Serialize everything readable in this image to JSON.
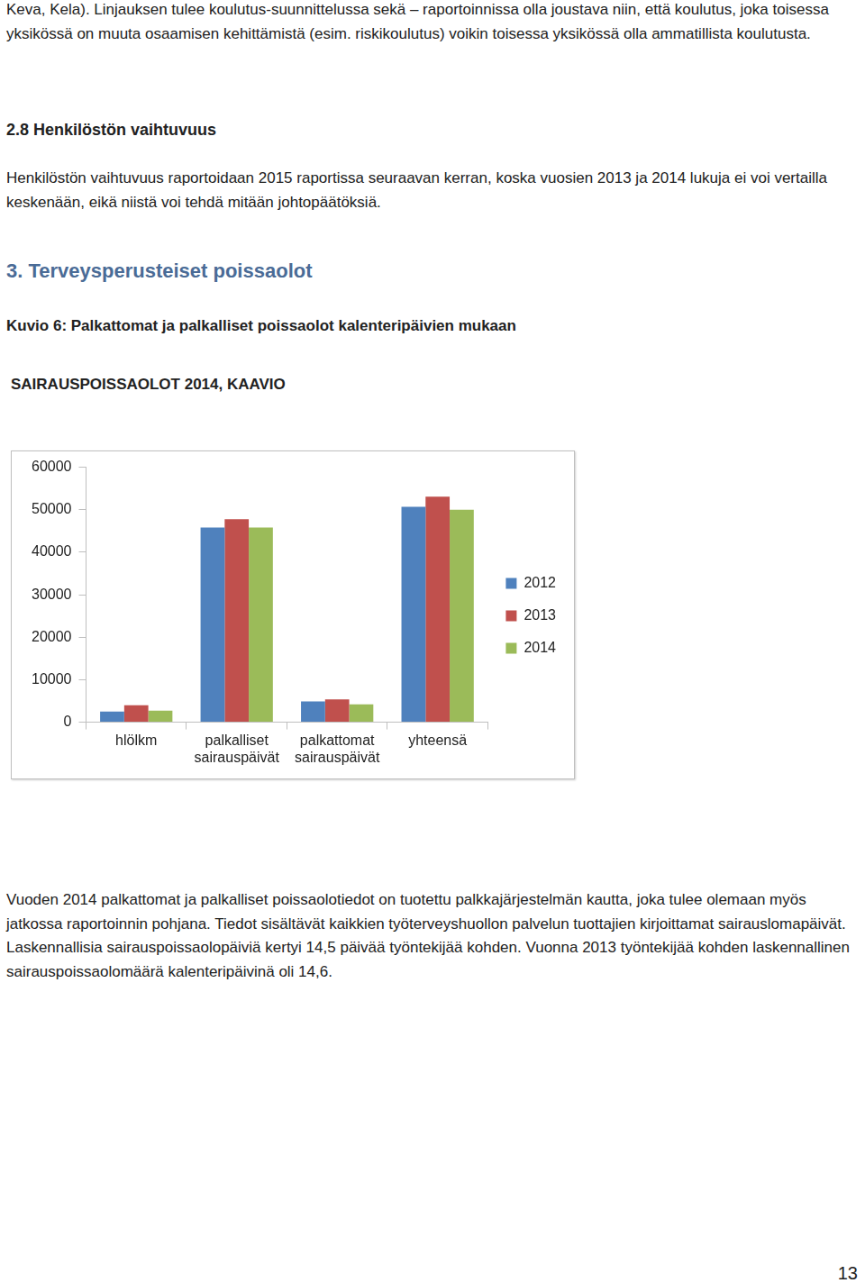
{
  "document": {
    "paragraph_1": "Keva, Kela). Linjauksen tulee koulutus-suunnittelussa sekä – raportoinnissa olla joustava niin, että koulutus, joka toisessa yksikössä on muuta osaamisen kehittämistä (esim. riskikoulutus) voikin toisessa yksikössä olla ammatillista koulutusta.",
    "heading_2_8": "2.8 Henkilöstön vaihtuvuus",
    "paragraph_2": "Henkilöstön vaihtuvuus raportoidaan 2015 raportissa seuraavan kerran, koska vuosien 2013 ja 2014 lukuja ei voi vertailla keskenään, eikä niistä voi tehdä mitään johtopäätöksiä.",
    "heading_3": "3. Terveysperusteiset poissaolot",
    "caption": "Kuvio 6: Palkattomat ja palkalliset poissaolot kalenteripäivien mukaan",
    "paragraph_3": "Vuoden 2014 palkattomat ja palkalliset poissaolotiedot on tuotettu palkkajärjestelmän kautta, joka tulee olemaan myös jatkossa raportoinnin pohjana. Tiedot sisältävät kaikkien työterveyshuollon palvelun tuottajien kirjoittamat sairauslomapäivät. Laskennallisia sairauspoissaolopäiviä kertyi 14,5 päivää työntekijää kohden. Vuonna 2013 työntekijää kohden laskennallinen sairauspoissaolomäärä kalenteripäivinä oli 14,6.",
    "page_number": "13"
  },
  "chart_data": {
    "type": "bar",
    "title": "SAIRAUSPOISSAOLOT 2014, KAAVIO",
    "categories": [
      "hlölkm",
      "palkalliset sairauspäivät",
      "palkattomat sairauspäivät",
      "yhteensä"
    ],
    "series": [
      {
        "name": "2012",
        "color": "#4f81bd",
        "values": [
          2500,
          45800,
          4900,
          50700
        ]
      },
      {
        "name": "2013",
        "color": "#c0504d",
        "values": [
          4000,
          47800,
          5400,
          53100
        ]
      },
      {
        "name": "2014",
        "color": "#9bbb59",
        "values": [
          2700,
          45800,
          4200,
          50000
        ]
      }
    ],
    "ylim": [
      0,
      60000
    ],
    "yticks": [
      0,
      10000,
      20000,
      30000,
      40000,
      50000,
      60000
    ],
    "grid": false,
    "legend": "right"
  }
}
